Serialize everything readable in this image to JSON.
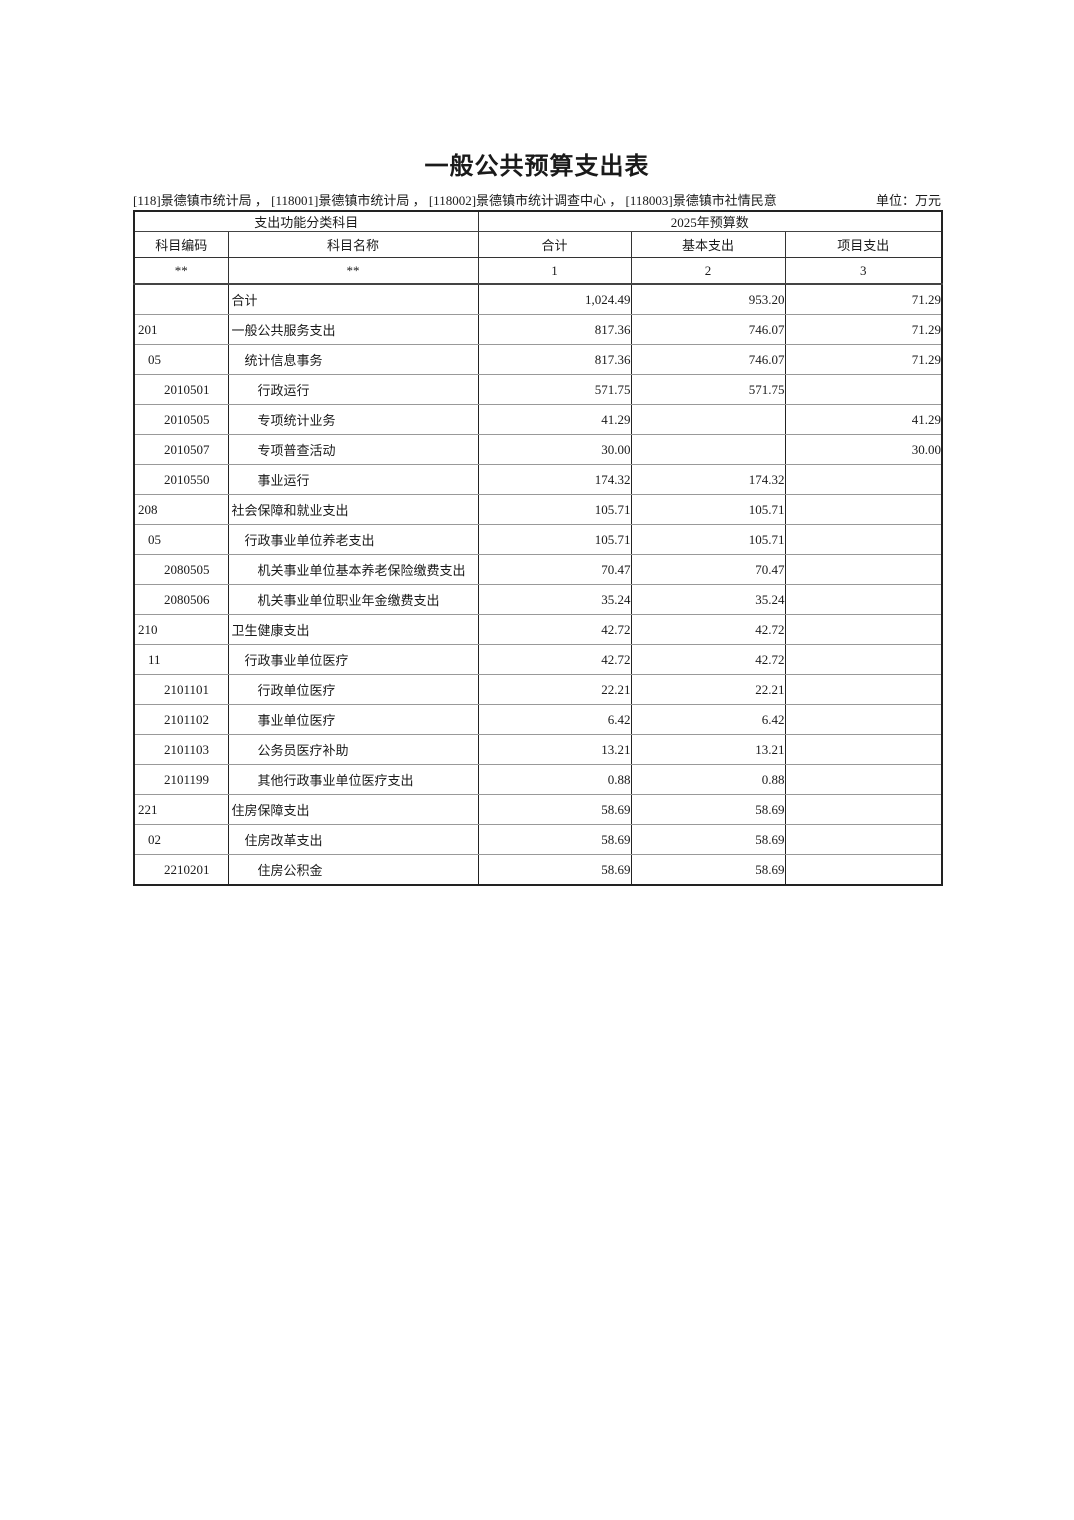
{
  "page": {
    "title": "一般公共预算支出表",
    "org_line": "[118]景德镇市统计局 ， [118001]景德镇市统计局 ， [118002]景德镇市统计调查中心 ， [118003]景德镇市社情民意",
    "unit_label": "单位：万元"
  },
  "table": {
    "group_header": {
      "left": "支出功能分类科目",
      "right": "2025年预算数"
    },
    "columns": [
      "科目编码",
      "科目名称",
      "合计",
      "基本支出",
      "项目支出"
    ],
    "marks": [
      "**",
      "**",
      "1",
      "2",
      "3"
    ],
    "rows": [
      {
        "code": "",
        "name": "合计",
        "total": "1,024.49",
        "basic": "953.20",
        "project": "71.29",
        "level": 1
      },
      {
        "code": "201",
        "name": "一般公共服务支出",
        "total": "817.36",
        "basic": "746.07",
        "project": "71.29",
        "level": 1
      },
      {
        "code": "05",
        "name": "统计信息事务",
        "total": "817.36",
        "basic": "746.07",
        "project": "71.29",
        "level": 2
      },
      {
        "code": "2010501",
        "name": "行政运行",
        "total": "571.75",
        "basic": "571.75",
        "project": "",
        "level": 3
      },
      {
        "code": "2010505",
        "name": "专项统计业务",
        "total": "41.29",
        "basic": "",
        "project": "41.29",
        "level": 3
      },
      {
        "code": "2010507",
        "name": "专项普查活动",
        "total": "30.00",
        "basic": "",
        "project": "30.00",
        "level": 3
      },
      {
        "code": "2010550",
        "name": "事业运行",
        "total": "174.32",
        "basic": "174.32",
        "project": "",
        "level": 3
      },
      {
        "code": "208",
        "name": "社会保障和就业支出",
        "total": "105.71",
        "basic": "105.71",
        "project": "",
        "level": 1
      },
      {
        "code": "05",
        "name": "行政事业单位养老支出",
        "total": "105.71",
        "basic": "105.71",
        "project": "",
        "level": 2
      },
      {
        "code": "2080505",
        "name": "机关事业单位基本养老保险缴费支出",
        "total": "70.47",
        "basic": "70.47",
        "project": "",
        "level": 3
      },
      {
        "code": "2080506",
        "name": "机关事业单位职业年金缴费支出",
        "total": "35.24",
        "basic": "35.24",
        "project": "",
        "level": 3
      },
      {
        "code": "210",
        "name": "卫生健康支出",
        "total": "42.72",
        "basic": "42.72",
        "project": "",
        "level": 1
      },
      {
        "code": "11",
        "name": "行政事业单位医疗",
        "total": "42.72",
        "basic": "42.72",
        "project": "",
        "level": 2
      },
      {
        "code": "2101101",
        "name": "行政单位医疗",
        "total": "22.21",
        "basic": "22.21",
        "project": "",
        "level": 3
      },
      {
        "code": "2101102",
        "name": "事业单位医疗",
        "total": "6.42",
        "basic": "6.42",
        "project": "",
        "level": 3
      },
      {
        "code": "2101103",
        "name": "公务员医疗补助",
        "total": "13.21",
        "basic": "13.21",
        "project": "",
        "level": 3
      },
      {
        "code": "2101199",
        "name": "其他行政事业单位医疗支出",
        "total": "0.88",
        "basic": "0.88",
        "project": "",
        "level": 3
      },
      {
        "code": "221",
        "name": "住房保障支出",
        "total": "58.69",
        "basic": "58.69",
        "project": "",
        "level": 1
      },
      {
        "code": "02",
        "name": "住房改革支出",
        "total": "58.69",
        "basic": "58.69",
        "project": "",
        "level": 2
      },
      {
        "code": "2210201",
        "name": "住房公积金",
        "total": "58.69",
        "basic": "58.69",
        "project": "",
        "level": 3
      }
    ]
  },
  "colors": {
    "text": "#1a1a1a",
    "border_dark": "#222222",
    "border_light": "#999999",
    "background": "#ffffff"
  }
}
